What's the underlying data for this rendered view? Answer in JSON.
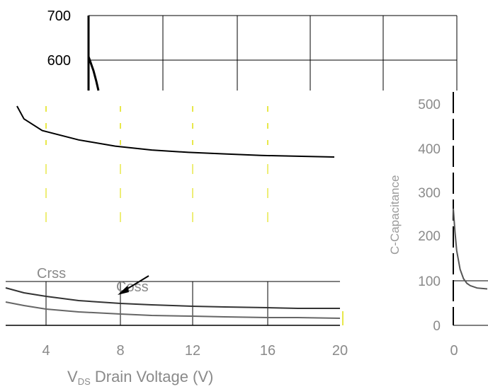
{
  "chart_data": [
    {
      "type": "line",
      "panel": "main",
      "xlabel": "V",
      "xlabel_sub": "DS",
      "xlabel_rest": " Drain Voltage (V)",
      "ylabel": "",
      "xlim": [
        0,
        20
      ],
      "ylim": [
        0,
        700
      ],
      "x_ticks": [
        "4",
        "8",
        "12",
        "16",
        "20"
      ],
      "y_ticks": [
        "600",
        "700"
      ],
      "grid": true,
      "annotations": [
        "Crss",
        "Coss"
      ],
      "series": [
        {
          "name": "",
          "x": [
            0.5,
            1,
            2,
            3,
            4,
            6,
            8,
            10,
            12,
            14,
            16,
            18,
            20
          ],
          "y": [
            600,
            520,
            470,
            445,
            430,
            418,
            410,
            405,
            402,
            400,
            398,
            397,
            396
          ]
        },
        {
          "name": "Coss",
          "x": [
            0,
            1,
            2,
            3,
            4,
            6,
            8,
            10,
            12,
            14,
            16,
            18,
            20
          ],
          "y": [
            95,
            80,
            70,
            63,
            58,
            52,
            48,
            46,
            44,
            43,
            42,
            41,
            41
          ]
        },
        {
          "name": "Crss",
          "x": [
            0,
            1,
            2,
            3,
            4,
            6,
            8,
            10,
            12,
            14,
            16,
            18,
            20
          ],
          "y": [
            80,
            60,
            50,
            45,
            40,
            36,
            33,
            31,
            30,
            29,
            28,
            28,
            27
          ]
        }
      ]
    },
    {
      "type": "line",
      "panel": "right",
      "xlabel": "",
      "ylabel": "C-Capacitance",
      "xlim": [
        0,
        4
      ],
      "ylim": [
        0,
        500
      ],
      "x_ticks": [
        "0"
      ],
      "y_ticks": [
        "0",
        "100",
        "200",
        "300",
        "400",
        "500"
      ],
      "grid": true,
      "series": [
        {
          "name": "",
          "x": [
            0,
            0.05,
            0.1,
            0.2,
            0.3,
            0.4,
            0.5,
            0.7,
            1.0
          ],
          "y": [
            250,
            200,
            160,
            120,
            100,
            90,
            85,
            80,
            78
          ]
        }
      ]
    }
  ]
}
